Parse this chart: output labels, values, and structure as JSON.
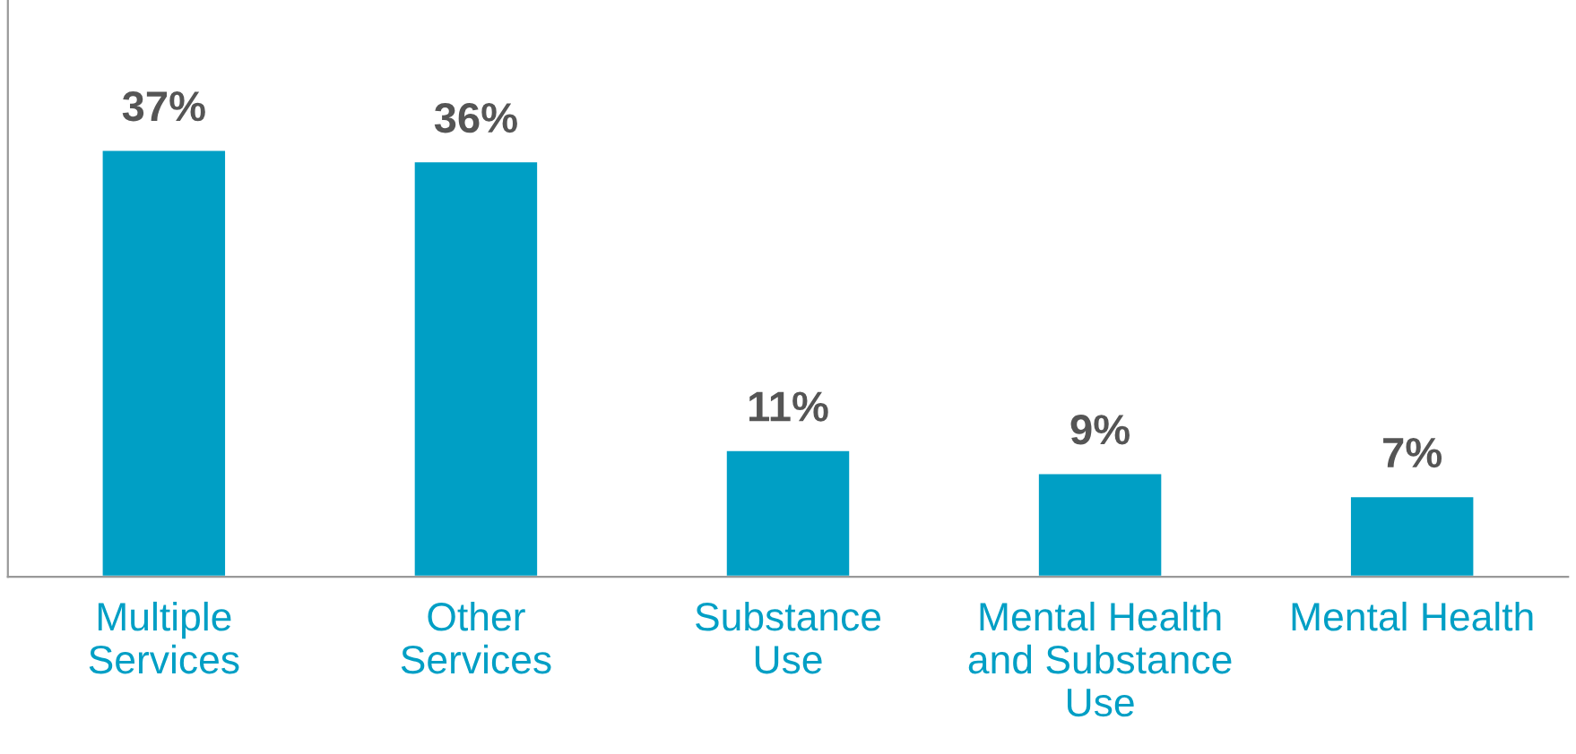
{
  "chart_data": {
    "type": "bar",
    "categories": [
      "Multiple\nServices",
      "Other\nServices",
      "Substance\nUse",
      "Mental Health\nand Substance\nUse",
      "Mental Health"
    ],
    "values": [
      37,
      36,
      11,
      9,
      7
    ],
    "color": "#009fc5",
    "value_labels": [
      "37%",
      "36%",
      "11%",
      "9%",
      "7%"
    ],
    "tick_labels": "x"
  }
}
